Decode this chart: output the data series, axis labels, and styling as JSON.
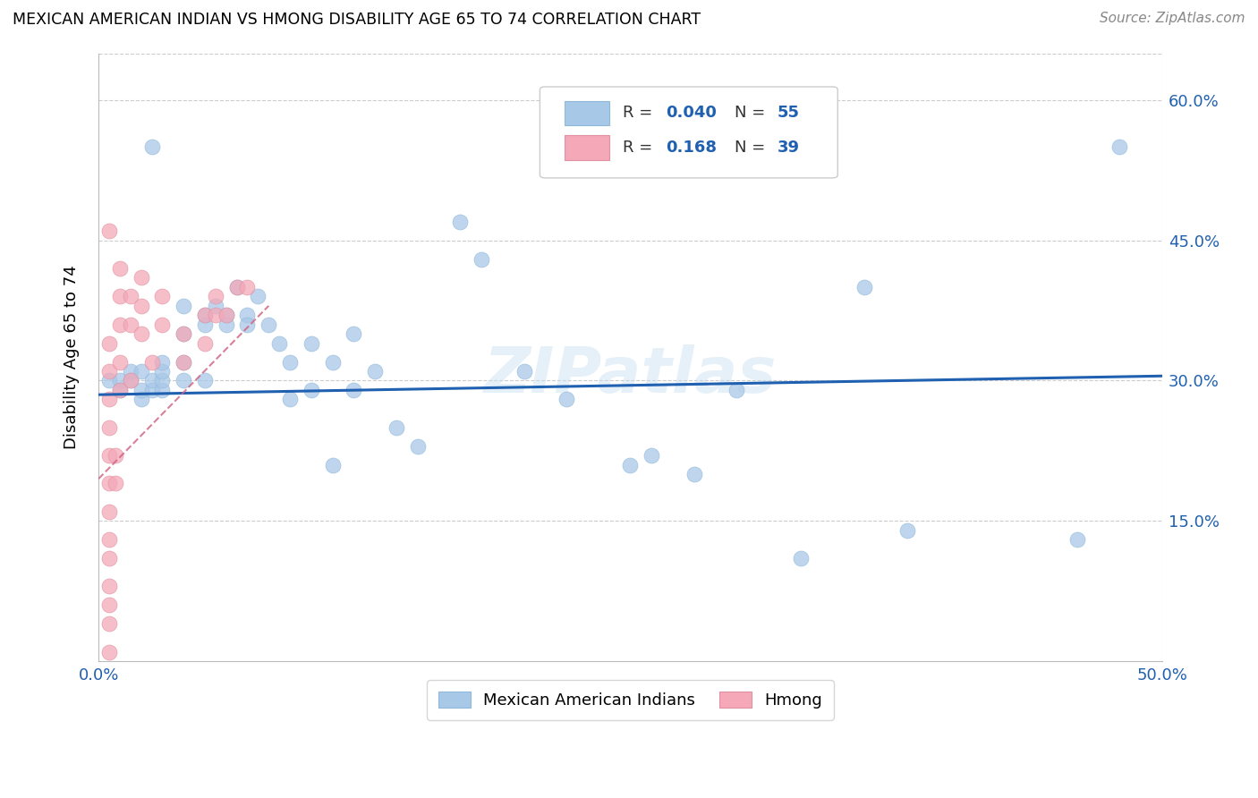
{
  "title": "MEXICAN AMERICAN INDIAN VS HMONG DISABILITY AGE 65 TO 74 CORRELATION CHART",
  "source": "Source: ZipAtlas.com",
  "ylabel": "Disability Age 65 to 74",
  "xlim": [
    0.0,
    0.5
  ],
  "ylim": [
    0.0,
    0.65
  ],
  "xticks": [
    0.0,
    0.1,
    0.2,
    0.3,
    0.4,
    0.5
  ],
  "xticklabels": [
    "0.0%",
    "",
    "",
    "",
    "",
    "50.0%"
  ],
  "yticks": [
    0.0,
    0.15,
    0.3,
    0.45,
    0.6
  ],
  "yticklabels": [
    "",
    "15.0%",
    "30.0%",
    "45.0%",
    "60.0%"
  ],
  "blue_color": "#a8c8e8",
  "pink_color": "#f4a8b8",
  "trend_blue": "#2060b0",
  "trend_pink": "#d06080",
  "watermark": "ZIPatlas",
  "blue_scatter_x": [
    0.005,
    0.01,
    0.01,
    0.015,
    0.015,
    0.02,
    0.02,
    0.02,
    0.025,
    0.025,
    0.025,
    0.03,
    0.03,
    0.03,
    0.03,
    0.04,
    0.04,
    0.04,
    0.04,
    0.05,
    0.05,
    0.05,
    0.055,
    0.06,
    0.06,
    0.065,
    0.07,
    0.07,
    0.075,
    0.08,
    0.085,
    0.09,
    0.09,
    0.1,
    0.1,
    0.11,
    0.11,
    0.12,
    0.12,
    0.13,
    0.14,
    0.15,
    0.17,
    0.18,
    0.2,
    0.22,
    0.25,
    0.26,
    0.28,
    0.3,
    0.33,
    0.36,
    0.38,
    0.46,
    0.48
  ],
  "blue_scatter_y": [
    0.3,
    0.3,
    0.29,
    0.3,
    0.31,
    0.28,
    0.29,
    0.31,
    0.29,
    0.3,
    0.55,
    0.29,
    0.3,
    0.31,
    0.32,
    0.3,
    0.32,
    0.35,
    0.38,
    0.36,
    0.37,
    0.3,
    0.38,
    0.37,
    0.36,
    0.4,
    0.37,
    0.36,
    0.39,
    0.36,
    0.34,
    0.32,
    0.28,
    0.34,
    0.29,
    0.32,
    0.21,
    0.29,
    0.35,
    0.31,
    0.25,
    0.23,
    0.47,
    0.43,
    0.31,
    0.28,
    0.21,
    0.22,
    0.2,
    0.29,
    0.11,
    0.4,
    0.14,
    0.13,
    0.55
  ],
  "pink_scatter_x": [
    0.005,
    0.005,
    0.005,
    0.005,
    0.005,
    0.005,
    0.005,
    0.005,
    0.005,
    0.005,
    0.005,
    0.005,
    0.005,
    0.005,
    0.008,
    0.008,
    0.01,
    0.01,
    0.01,
    0.01,
    0.01,
    0.015,
    0.015,
    0.015,
    0.02,
    0.02,
    0.02,
    0.025,
    0.03,
    0.03,
    0.04,
    0.04,
    0.05,
    0.05,
    0.055,
    0.055,
    0.06,
    0.065,
    0.07
  ],
  "pink_scatter_y": [
    0.01,
    0.04,
    0.06,
    0.08,
    0.11,
    0.13,
    0.16,
    0.19,
    0.22,
    0.25,
    0.28,
    0.31,
    0.34,
    0.46,
    0.19,
    0.22,
    0.29,
    0.32,
    0.36,
    0.39,
    0.42,
    0.3,
    0.36,
    0.39,
    0.35,
    0.38,
    0.41,
    0.32,
    0.36,
    0.39,
    0.32,
    0.35,
    0.34,
    0.37,
    0.37,
    0.39,
    0.37,
    0.4,
    0.4
  ],
  "blue_trend_x": [
    0.0,
    0.5
  ],
  "blue_trend_y": [
    0.285,
    0.305
  ],
  "pink_trend_x": [
    0.0,
    0.08
  ],
  "pink_trend_y": [
    0.195,
    0.38
  ]
}
